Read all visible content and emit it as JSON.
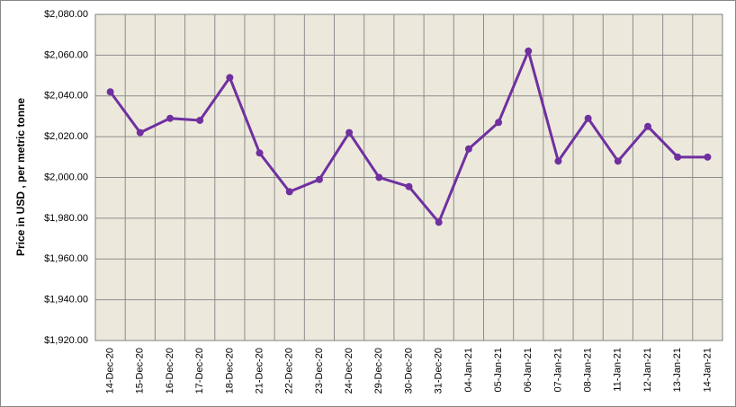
{
  "chart_data": {
    "type": "line",
    "y_label": "Price in USD , per metric tonne",
    "categories": [
      "14-Dec-20",
      "15-Dec-20",
      "16-Dec-20",
      "17-Dec-20",
      "18-Dec-20",
      "21-Dec-20",
      "22-Dec-20",
      "23-Dec-20",
      "24-Dec-20",
      "29-Dec-20",
      "30-Dec-20",
      "31-Dec-20",
      "04-Jan-21",
      "05-Jan-21",
      "06-Jan-21",
      "07-Jan-21",
      "08-Jan-21",
      "11-Jan-21",
      "12-Jan-21",
      "13-Jan-21",
      "14-Jan-21"
    ],
    "values": [
      2042,
      2022,
      2029,
      2028,
      2049,
      2012,
      1993,
      1999,
      2022,
      2000,
      1995.5,
      1978,
      2014,
      2027,
      2062,
      2008,
      2029,
      2008,
      2025,
      2010,
      2010
    ],
    "color": "#7030a0",
    "ylim": [
      1920,
      2080
    ],
    "yticks": [
      {
        "value": 1920,
        "label": "$1,920.00"
      },
      {
        "value": 1940,
        "label": "$1,940.00"
      },
      {
        "value": 1960,
        "label": "$1,960.00"
      },
      {
        "value": 1980,
        "label": "$1,980.00"
      },
      {
        "value": 2000,
        "label": "$2,000.00"
      },
      {
        "value": 2020,
        "label": "$2,020.00"
      },
      {
        "value": 2040,
        "label": "$2,040.00"
      },
      {
        "value": 2060,
        "label": "$2,060.00"
      },
      {
        "value": 2080,
        "label": "$2,080.00"
      }
    ],
    "grid": true
  }
}
